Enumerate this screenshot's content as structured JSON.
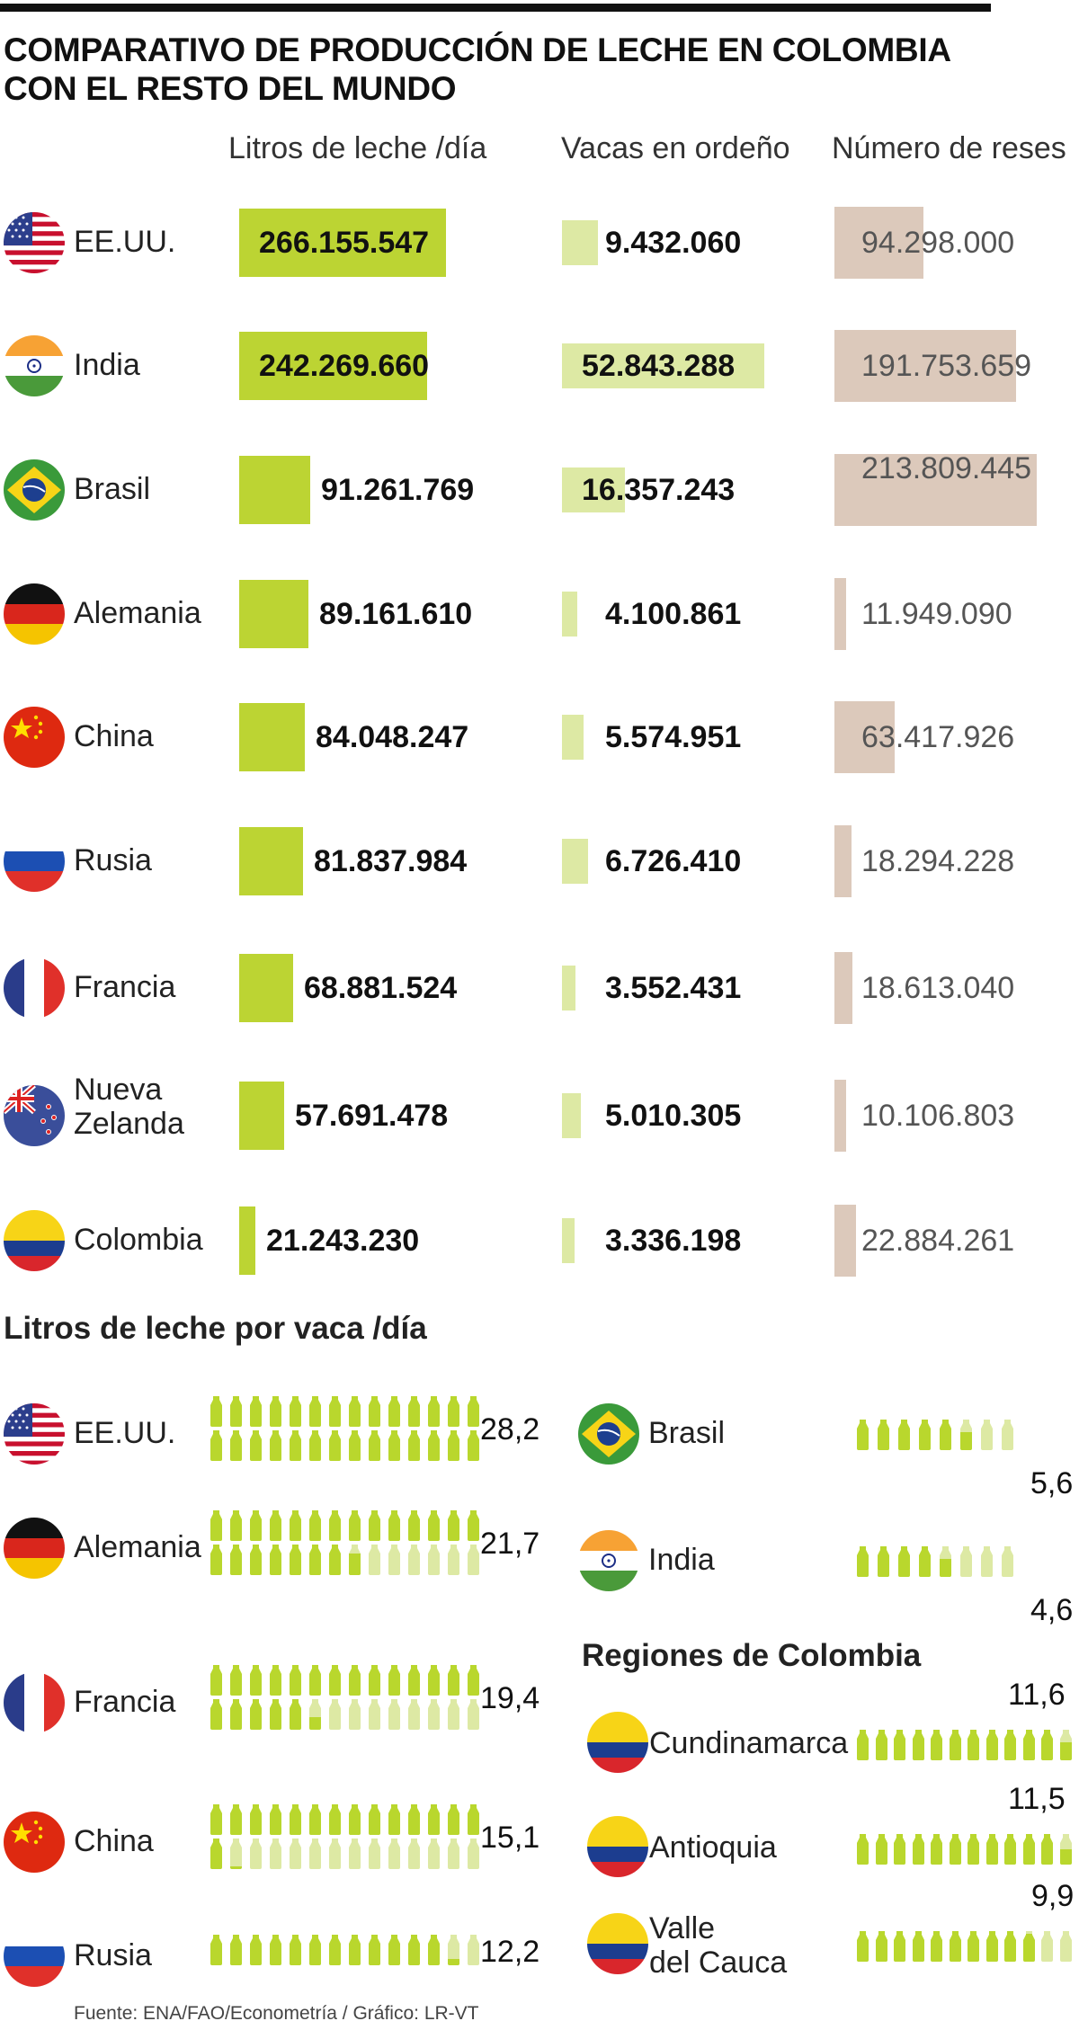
{
  "title_line1": "COMPARATIVO DE PRODUCCIÓN DE LECHE EN COLOMBIA",
  "title_line2": "CON EL RESTO DEL MUNDO",
  "source": "Fuente: ENA/FAO/Econometría / Gráfico: LR-VT",
  "colors": {
    "litros": "#bcd433",
    "vacas": "#dde9a4",
    "reses": "#dcc9bb",
    "bottle_on": "#b9d72d",
    "bottle_off": "#dde9a4"
  },
  "chart_data": [
    {
      "type": "bar",
      "title": "",
      "categories": [
        "EE.UU.",
        "India",
        "Brasil",
        "Alemania",
        "China",
        "Rusia",
        "Francia",
        "Nueva Zelanda",
        "Colombia"
      ],
      "series": [
        {
          "name": "Litros de leche /día",
          "values": [
            266155547,
            242269660,
            91261769,
            89161610,
            84048247,
            81837984,
            68881524,
            57691478,
            21243230
          ],
          "labels": [
            "266.155.547",
            "242.269.660",
            "91.261.769",
            "89.161.610",
            "84.048.247",
            "81.837.984",
            "68.881.524",
            "57.691.478",
            "21.243.230"
          ]
        },
        {
          "name": "Vacas en ordeño",
          "values": [
            9432060,
            52843288,
            16357243,
            4100861,
            5574951,
            6726410,
            3552431,
            5010305,
            3336198
          ],
          "labels": [
            "9.432.060",
            "52.843.288",
            "16.357.243",
            "4.100.861",
            "5.574.951",
            "6.726.410",
            "3.552.431",
            "5.010.305",
            "3.336.198"
          ]
        },
        {
          "name": "Número de reses",
          "values": [
            94298000,
            191753659,
            213809445,
            11949090,
            63417926,
            18294228,
            18613040,
            10106803,
            22884261
          ],
          "labels": [
            "94.298.000",
            "191.753.659",
            "213.809.445",
            "11.949.090",
            "63.417.926",
            "18.294.228",
            "18.613.040",
            "10.106.803",
            "22.884.261"
          ]
        }
      ]
    },
    {
      "type": "bar",
      "title": "Litros de leche por vaca /día",
      "categories": [
        "EE.UU.",
        "Alemania",
        "Francia",
        "China",
        "Rusia",
        "Brasil",
        "India"
      ],
      "values": [
        28.2,
        21.7,
        19.4,
        15.1,
        12.2,
        5.6,
        4.6
      ],
      "labels": [
        "28,2",
        "21,7",
        "19,4",
        "15,1",
        "12,2",
        "5,6",
        "4,6"
      ]
    },
    {
      "type": "bar",
      "title": "Regiones de Colombia",
      "categories": [
        "Cundinamarca",
        "Antioquia",
        "Valle del Cauca"
      ],
      "values": [
        11.6,
        11.5,
        9.9
      ],
      "labels": [
        "11,6",
        "11,5",
        "9,9"
      ]
    }
  ],
  "regions_label": [
    "Cundinamarca",
    "Antioquia",
    "Valle",
    "del Cauca"
  ],
  "country_lines": {
    "nz1": "Nueva",
    "nz2": "Zelanda"
  }
}
